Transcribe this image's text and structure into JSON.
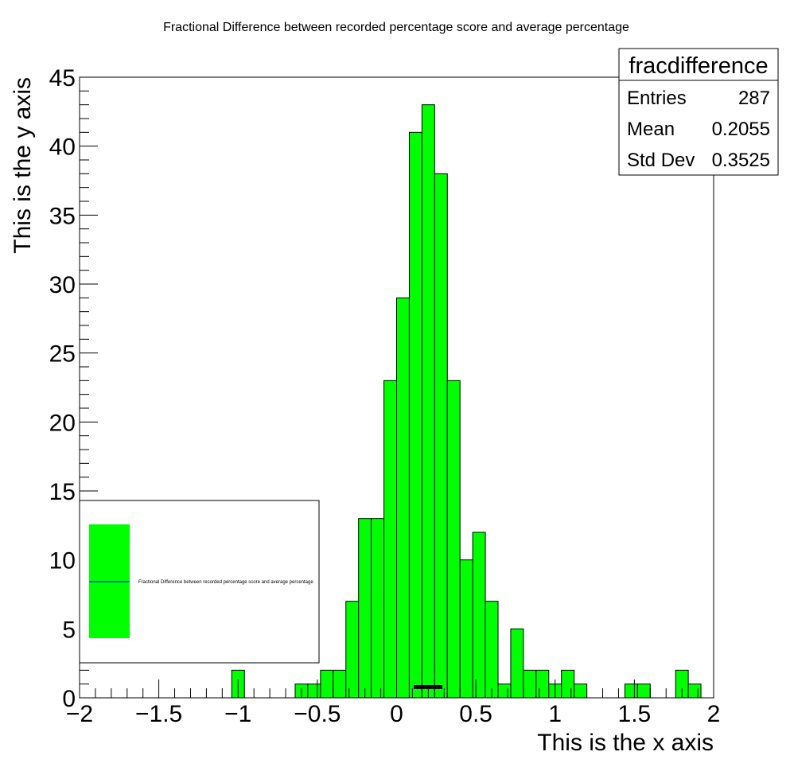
{
  "chart_data": {
    "type": "bar",
    "title": "Fractional Difference between recorded percentage score and average percentage",
    "xlabel": "This is the x axis",
    "ylabel": "This is the y axis",
    "xlim": [
      -2,
      2
    ],
    "ylim": [
      0,
      45
    ],
    "bin_width": 0.08,
    "x_ticks": [
      "−2",
      "−1.5",
      "−1",
      "−0.5",
      "0",
      "0.5",
      "1",
      "1.5",
      "2"
    ],
    "y_ticks": [
      "0",
      "5",
      "10",
      "15",
      "20",
      "25",
      "30",
      "35",
      "40",
      "45"
    ],
    "fill_color": "#00ff00",
    "bins": [
      {
        "x0": -1.04,
        "count": 2
      },
      {
        "x0": -0.64,
        "count": 1
      },
      {
        "x0": -0.56,
        "count": 1
      },
      {
        "x0": -0.48,
        "count": 2
      },
      {
        "x0": -0.4,
        "count": 2
      },
      {
        "x0": -0.32,
        "count": 7
      },
      {
        "x0": -0.24,
        "count": 13
      },
      {
        "x0": -0.16,
        "count": 13
      },
      {
        "x0": -0.08,
        "count": 23
      },
      {
        "x0": 0.0,
        "count": 29
      },
      {
        "x0": 0.08,
        "count": 41
      },
      {
        "x0": 0.16,
        "count": 43
      },
      {
        "x0": 0.24,
        "count": 38
      },
      {
        "x0": 0.32,
        "count": 23
      },
      {
        "x0": 0.4,
        "count": 10
      },
      {
        "x0": 0.48,
        "count": 12
      },
      {
        "x0": 0.56,
        "count": 7
      },
      {
        "x0": 0.64,
        "count": 1
      },
      {
        "x0": 0.72,
        "count": 5
      },
      {
        "x0": 0.8,
        "count": 2
      },
      {
        "x0": 0.88,
        "count": 2
      },
      {
        "x0": 0.96,
        "count": 1
      },
      {
        "x0": 1.04,
        "count": 2
      },
      {
        "x0": 1.12,
        "count": 1
      },
      {
        "x0": 1.44,
        "count": 1
      },
      {
        "x0": 1.52,
        "count": 1
      },
      {
        "x0": 1.76,
        "count": 2
      },
      {
        "x0": 1.84,
        "count": 1
      }
    ]
  },
  "stats": {
    "name": "fracdifference",
    "rows": [
      {
        "label": "Entries",
        "value": "287"
      },
      {
        "label": "Mean",
        "value": "0.2055"
      },
      {
        "label": "Std Dev",
        "value": "0.3525"
      }
    ]
  },
  "legend": {
    "entry": "Fractional Difference between recorded percentage score and average percentage",
    "fill_color": "#00ff00",
    "line_color": "#0000ff"
  }
}
